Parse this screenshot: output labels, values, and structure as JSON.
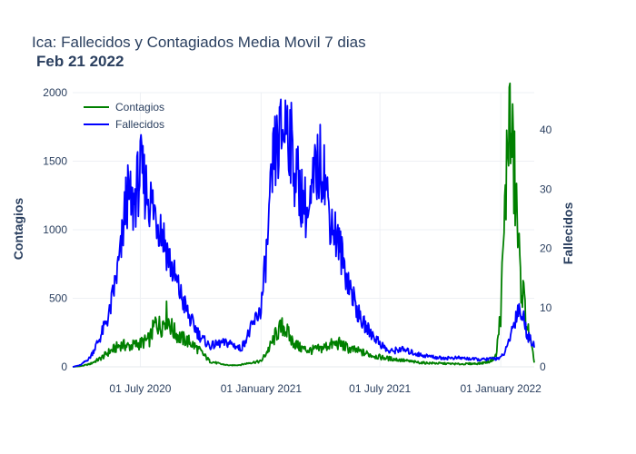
{
  "chart_data": {
    "type": "line",
    "title": "Ica: Fallecidos y Contagiados Media Movil 7 dias",
    "subtitle": "Feb 21 2022",
    "xlabel": "",
    "ylabel": "Contagios",
    "y2label": "Fallecidos",
    "xlim": [
      "2020-03-20",
      "2022-02-21"
    ],
    "ylim": [
      0,
      2000
    ],
    "y2lim": [
      0,
      46.3
    ],
    "x_ticks": [
      {
        "date": "2020-07-01",
        "label": "01 July 2020"
      },
      {
        "date": "2021-01-01",
        "label": "01 January 2021"
      },
      {
        "date": "2021-07-01",
        "label": "01 July 2021"
      },
      {
        "date": "2022-01-01",
        "label": "01 January 2022"
      }
    ],
    "y_ticks": [
      0,
      500,
      1000,
      1500,
      2000
    ],
    "y2_ticks": [
      0,
      10,
      20,
      30,
      40
    ],
    "grid": true,
    "legend_position": "top-left",
    "colors": {
      "contagios": "#008000",
      "fallecidos": "#0000ff"
    },
    "series": [
      {
        "name": "Contagios",
        "axis": "y",
        "color": "#008000",
        "points": [
          [
            "2020-03-20",
            0
          ],
          [
            "2020-04-01",
            5
          ],
          [
            "2020-04-15",
            20
          ],
          [
            "2020-05-01",
            60
          ],
          [
            "2020-05-15",
            110
          ],
          [
            "2020-06-01",
            160
          ],
          [
            "2020-06-15",
            150
          ],
          [
            "2020-07-01",
            170
          ],
          [
            "2020-07-15",
            200
          ],
          [
            "2020-07-25",
            330
          ],
          [
            "2020-08-01",
            290
          ],
          [
            "2020-08-10",
            380
          ],
          [
            "2020-08-20",
            260
          ],
          [
            "2020-09-01",
            210
          ],
          [
            "2020-09-15",
            180
          ],
          [
            "2020-10-01",
            110
          ],
          [
            "2020-10-15",
            40
          ],
          [
            "2020-11-01",
            20
          ],
          [
            "2020-11-15",
            10
          ],
          [
            "2020-12-01",
            15
          ],
          [
            "2020-12-15",
            30
          ],
          [
            "2021-01-01",
            40
          ],
          [
            "2021-01-15",
            150
          ],
          [
            "2021-01-25",
            250
          ],
          [
            "2021-02-05",
            300
          ],
          [
            "2021-02-15",
            200
          ],
          [
            "2021-03-01",
            140
          ],
          [
            "2021-03-15",
            120
          ],
          [
            "2021-04-01",
            130
          ],
          [
            "2021-04-15",
            160
          ],
          [
            "2021-05-01",
            170
          ],
          [
            "2021-05-15",
            130
          ],
          [
            "2021-06-01",
            110
          ],
          [
            "2021-06-15",
            90
          ],
          [
            "2021-07-01",
            70
          ],
          [
            "2021-07-15",
            60
          ],
          [
            "2021-08-01",
            50
          ],
          [
            "2021-08-15",
            40
          ],
          [
            "2021-09-01",
            30
          ],
          [
            "2021-10-01",
            25
          ],
          [
            "2021-11-01",
            20
          ],
          [
            "2021-12-01",
            25
          ],
          [
            "2021-12-15",
            40
          ],
          [
            "2021-12-25",
            80
          ],
          [
            "2022-01-01",
            400
          ],
          [
            "2022-01-08",
            1200
          ],
          [
            "2022-01-13",
            1850
          ],
          [
            "2022-01-18",
            1600
          ],
          [
            "2022-01-24",
            1250
          ],
          [
            "2022-01-30",
            700
          ],
          [
            "2022-02-05",
            500
          ],
          [
            "2022-02-10",
            300
          ],
          [
            "2022-02-15",
            180
          ],
          [
            "2022-02-21",
            40
          ]
        ]
      },
      {
        "name": "Fallecidos",
        "axis": "y2",
        "color": "#0000ff",
        "points": [
          [
            "2020-03-20",
            0
          ],
          [
            "2020-04-01",
            0.3
          ],
          [
            "2020-04-15",
            1.5
          ],
          [
            "2020-05-01",
            5
          ],
          [
            "2020-05-15",
            9
          ],
          [
            "2020-06-01",
            19
          ],
          [
            "2020-06-10",
            29
          ],
          [
            "2020-06-20",
            27
          ],
          [
            "2020-07-01",
            33
          ],
          [
            "2020-07-10",
            30
          ],
          [
            "2020-07-20",
            27
          ],
          [
            "2020-08-01",
            24
          ],
          [
            "2020-08-10",
            20
          ],
          [
            "2020-08-20",
            16
          ],
          [
            "2020-09-01",
            12
          ],
          [
            "2020-09-15",
            8
          ],
          [
            "2020-10-01",
            5
          ],
          [
            "2020-10-15",
            3.5
          ],
          [
            "2020-11-01",
            4
          ],
          [
            "2020-11-15",
            4
          ],
          [
            "2020-12-01",
            3
          ],
          [
            "2020-12-15",
            6
          ],
          [
            "2021-01-01",
            10
          ],
          [
            "2021-01-10",
            20
          ],
          [
            "2021-01-20",
            35
          ],
          [
            "2021-02-01",
            39
          ],
          [
            "2021-02-10",
            42
          ],
          [
            "2021-02-20",
            34
          ],
          [
            "2021-03-01",
            30
          ],
          [
            "2021-03-15",
            25
          ],
          [
            "2021-03-25",
            33
          ],
          [
            "2021-04-05",
            35
          ],
          [
            "2021-04-15",
            26
          ],
          [
            "2021-05-01",
            20
          ],
          [
            "2021-05-15",
            14
          ],
          [
            "2021-06-01",
            8
          ],
          [
            "2021-06-15",
            6
          ],
          [
            "2021-07-01",
            4
          ],
          [
            "2021-07-15",
            2.5
          ],
          [
            "2021-08-01",
            3
          ],
          [
            "2021-09-01",
            2
          ],
          [
            "2021-10-01",
            1.5
          ],
          [
            "2021-11-01",
            1.5
          ],
          [
            "2021-12-01",
            1.2
          ],
          [
            "2022-01-01",
            1.5
          ],
          [
            "2022-01-10",
            3
          ],
          [
            "2022-01-20",
            7
          ],
          [
            "2022-01-28",
            10
          ],
          [
            "2022-02-05",
            8
          ],
          [
            "2022-02-12",
            5
          ],
          [
            "2022-02-21",
            4
          ]
        ]
      }
    ]
  }
}
